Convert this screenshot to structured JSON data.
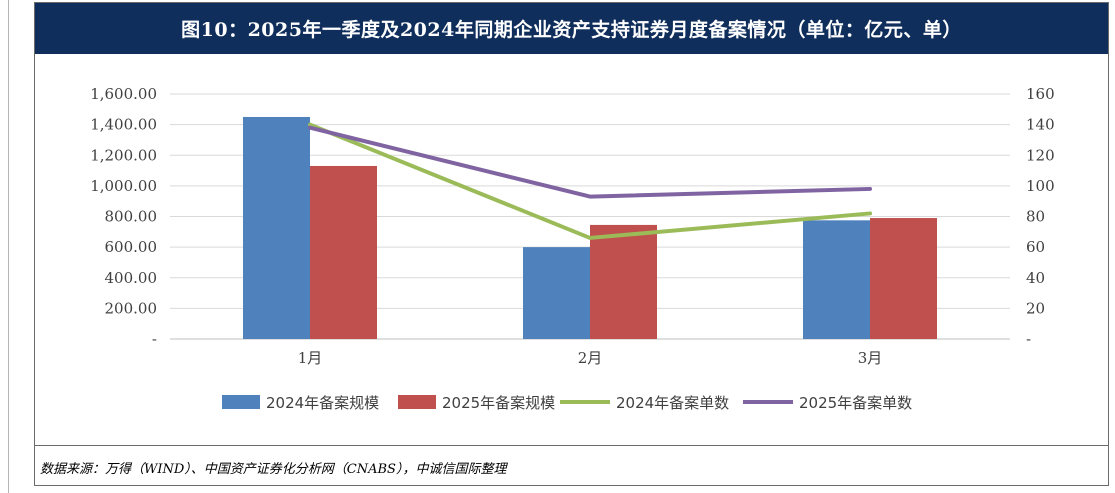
{
  "title": "图10：2025年一季度及2024年同期企业资产支持证券月度备案情况（单位：亿元、单）",
  "source": "数据来源：万得（WIND）、中国资产证券化分析网（CNABS），中诚信国际整理",
  "colors": {
    "title_bg": "#0f2e5c",
    "bar_2024": "#4f81bd",
    "bar_2025": "#c0504d",
    "line_2024": "#9bbb59",
    "line_2025": "#8064a2"
  },
  "chart_data": {
    "type": "bar",
    "categories": [
      "1月",
      "2月",
      "3月"
    ],
    "series": [
      {
        "name": "2024年备案规模",
        "type": "bar",
        "axis": "left",
        "values": [
          1450,
          600,
          775
        ]
      },
      {
        "name": "2025年备案规模",
        "type": "bar",
        "axis": "left",
        "values": [
          1130,
          745,
          790
        ]
      },
      {
        "name": "2024年备案单数",
        "type": "line",
        "axis": "right",
        "values": [
          140,
          66,
          82
        ]
      },
      {
        "name": "2025年备案单数",
        "type": "line",
        "axis": "right",
        "values": [
          138,
          93,
          98
        ]
      }
    ],
    "y_left": {
      "range": [
        0,
        1600
      ],
      "ticks": [
        0,
        200,
        400,
        600,
        800,
        1000,
        1200,
        1400,
        1600
      ],
      "tick_labels": [
        "-",
        "200.00",
        "400.00",
        "600.00",
        "800.00",
        "1,000.00",
        "1,200.00",
        "1,400.00",
        "1,600.00"
      ]
    },
    "y_right": {
      "range": [
        0,
        160
      ],
      "ticks": [
        0,
        20,
        40,
        60,
        80,
        100,
        120,
        140,
        160
      ],
      "tick_labels": [
        "-",
        "20",
        "40",
        "60",
        "80",
        "100",
        "120",
        "140",
        "160"
      ]
    },
    "grid": true,
    "legend": "bottom"
  }
}
